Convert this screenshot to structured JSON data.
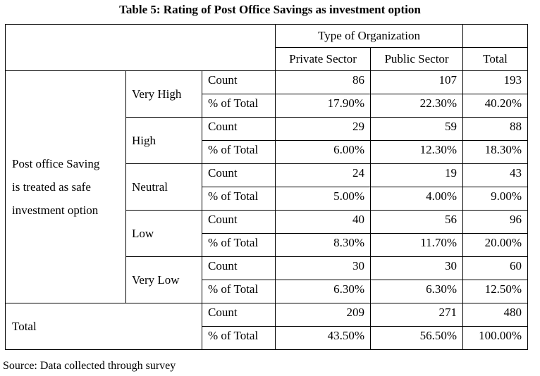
{
  "title": "Table 5: Rating of Post Office Savings as investment option",
  "header": {
    "group_label": "Type of Organization",
    "columns": [
      "Private Sector",
      "Public Sector",
      "Total"
    ]
  },
  "row_group_label_lines": [
    "Post office Saving",
    "is treated as safe",
    "investment option"
  ],
  "measures": {
    "count": "Count",
    "pct": "% of Total"
  },
  "categories": [
    {
      "label": "Very High",
      "count": [
        "86",
        "107",
        "193"
      ],
      "pct": [
        "17.90%",
        "22.30%",
        "40.20%"
      ]
    },
    {
      "label": "High",
      "count": [
        "29",
        "59",
        "88"
      ],
      "pct": [
        "6.00%",
        "12.30%",
        "18.30%"
      ]
    },
    {
      "label": "Neutral",
      "count": [
        "24",
        "19",
        "43"
      ],
      "pct": [
        "5.00%",
        "4.00%",
        "9.00%"
      ]
    },
    {
      "label": "Low",
      "count": [
        "40",
        "56",
        "96"
      ],
      "pct": [
        "8.30%",
        "11.70%",
        "20.00%"
      ]
    },
    {
      "label": "Very Low",
      "count": [
        "30",
        "30",
        "60"
      ],
      "pct": [
        "6.30%",
        "6.30%",
        "12.50%"
      ]
    }
  ],
  "total_row": {
    "label": "Total",
    "count": [
      "209",
      "271",
      "480"
    ],
    "pct": [
      "43.50%",
      "56.50%",
      "100.00%"
    ]
  },
  "source": "Source: Data collected through survey"
}
